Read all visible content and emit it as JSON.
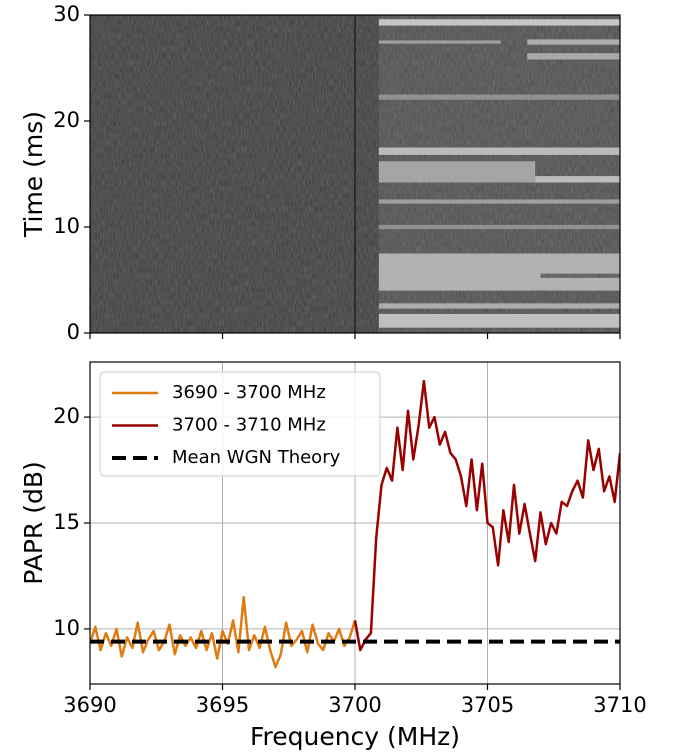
{
  "chart_data": [
    {
      "type": "heatmap",
      "ylabel": "Time (ms)",
      "xlim": [
        3690,
        3710
      ],
      "ylim": [
        0,
        30
      ],
      "yticks": [
        0,
        10,
        20,
        30
      ],
      "background": "#3a3a3a",
      "divider_x": 3700,
      "segments": [
        {
          "x": [
            3700.9,
            3710
          ],
          "y": [
            0,
            30
          ],
          "color": "#4b4b4b"
        },
        {
          "x": [
            3700.9,
            3710
          ],
          "y": [
            29.0,
            29.6
          ],
          "color": "#c8c8c8"
        },
        {
          "x": [
            3700.9,
            3705.5
          ],
          "y": [
            27.3,
            27.6
          ],
          "color": "#9a9a9a"
        },
        {
          "x": [
            3706.5,
            3710
          ],
          "y": [
            27.2,
            27.7
          ],
          "color": "#aaaaaa"
        },
        {
          "x": [
            3706.5,
            3710
          ],
          "y": [
            25.8,
            26.4
          ],
          "color": "#a5a5a5"
        },
        {
          "x": [
            3700.9,
            3710
          ],
          "y": [
            22.0,
            22.5
          ],
          "color": "#888888"
        },
        {
          "x": [
            3700.9,
            3710
          ],
          "y": [
            16.8,
            17.5
          ],
          "color": "#bbbbbb"
        },
        {
          "x": [
            3700.9,
            3706.8
          ],
          "y": [
            14.2,
            16.2
          ],
          "color": "#a0a0a0"
        },
        {
          "x": [
            3706.8,
            3710
          ],
          "y": [
            14.2,
            14.8
          ],
          "color": "#bdbdbd"
        },
        {
          "x": [
            3700.9,
            3710
          ],
          "y": [
            12.2,
            12.6
          ],
          "color": "#999999"
        },
        {
          "x": [
            3700.9,
            3710
          ],
          "y": [
            9.8,
            10.2
          ],
          "color": "#888888"
        },
        {
          "x": [
            3700.9,
            3710
          ],
          "y": [
            4.0,
            7.5
          ],
          "color": "#b0b0b0"
        },
        {
          "x": [
            3707,
            3710
          ],
          "y": [
            5.2,
            5.6
          ],
          "color": "#555555"
        },
        {
          "x": [
            3700.9,
            3710
          ],
          "y": [
            2.3,
            2.8
          ],
          "color": "#aaaaaa"
        },
        {
          "x": [
            3700.9,
            3710
          ],
          "y": [
            0.5,
            1.8
          ],
          "color": "#c0c0c0"
        }
      ]
    },
    {
      "type": "line",
      "xlabel": "Frequency (MHz)",
      "ylabel": "PAPR (dB)",
      "xlim": [
        3690,
        3710
      ],
      "ylim": [
        7.4,
        22.6
      ],
      "xticks": [
        3690,
        3695,
        3700,
        3705,
        3710
      ],
      "yticks": [
        10,
        15,
        20
      ],
      "grid": true,
      "legend": "upper left",
      "series": [
        {
          "name": "3690 - 3700 MHz",
          "color": "#e07b10",
          "linestyle": "solid",
          "x": [
            3690,
            3690.2,
            3690.4,
            3690.6,
            3690.8,
            3691,
            3691.2,
            3691.4,
            3691.6,
            3691.8,
            3692,
            3692.2,
            3692.4,
            3692.6,
            3692.8,
            3693,
            3693.2,
            3693.4,
            3693.6,
            3693.8,
            3694,
            3694.2,
            3694.4,
            3694.6,
            3694.8,
            3695,
            3695.2,
            3695.4,
            3695.6,
            3695.8,
            3696,
            3696.2,
            3696.4,
            3696.6,
            3696.8,
            3697,
            3697.2,
            3697.4,
            3697.6,
            3697.8,
            3698,
            3698.2,
            3698.4,
            3698.6,
            3698.8,
            3699,
            3699.2,
            3699.4,
            3699.6,
            3699.8,
            3700
          ],
          "values": [
            9.3,
            10.1,
            9.0,
            9.8,
            9.2,
            10.0,
            8.7,
            9.6,
            9.1,
            10.3,
            8.9,
            9.5,
            9.9,
            9.0,
            9.4,
            10.2,
            8.8,
            9.7,
            9.2,
            9.6,
            9.1,
            9.9,
            9.0,
            9.8,
            8.6,
            9.9,
            9.3,
            10.4,
            8.9,
            11.5,
            9.0,
            9.7,
            9.1,
            10.1,
            9.0,
            8.2,
            8.8,
            10.3,
            9.2,
            9.5,
            9.9,
            8.9,
            10.2,
            9.3,
            9.0,
            9.8,
            9.4,
            10.0,
            9.2,
            9.6,
            10.4
          ]
        },
        {
          "name": "3700 - 3710 MHz",
          "color": "#990000",
          "linestyle": "solid",
          "x": [
            3700,
            3700.2,
            3700.4,
            3700.6,
            3700.8,
            3701,
            3701.2,
            3701.4,
            3701.6,
            3701.8,
            3702,
            3702.2,
            3702.4,
            3702.6,
            3702.8,
            3703,
            3703.2,
            3703.4,
            3703.6,
            3703.8,
            3704,
            3704.2,
            3704.4,
            3704.6,
            3704.8,
            3705,
            3705.2,
            3705.4,
            3705.6,
            3705.8,
            3706,
            3706.2,
            3706.4,
            3706.6,
            3706.8,
            3707,
            3707.2,
            3707.4,
            3707.6,
            3707.8,
            3708,
            3708.2,
            3708.4,
            3708.6,
            3708.8,
            3709,
            3709.2,
            3709.4,
            3709.6,
            3709.8,
            3710
          ],
          "values": [
            10.4,
            9.0,
            9.5,
            9.8,
            14.3,
            16.8,
            17.6,
            17.0,
            19.5,
            17.5,
            20.3,
            18.0,
            19.6,
            21.7,
            19.5,
            20.0,
            18.7,
            19.3,
            18.3,
            18.0,
            17.2,
            15.8,
            18.0,
            15.6,
            17.8,
            15.0,
            14.8,
            13.0,
            15.6,
            14.1,
            16.8,
            14.5,
            15.9,
            14.5,
            13.2,
            15.5,
            14.0,
            15.0,
            14.5,
            16.0,
            15.8,
            16.5,
            17.0,
            16.2,
            18.9,
            17.5,
            18.5,
            16.5,
            17.2,
            16.0,
            18.3
          ]
        },
        {
          "name": "Mean WGN Theory",
          "color": "#000000",
          "linestyle": "dashed",
          "x": [
            3690,
            3710
          ],
          "values": [
            9.4,
            9.4
          ]
        }
      ]
    }
  ]
}
